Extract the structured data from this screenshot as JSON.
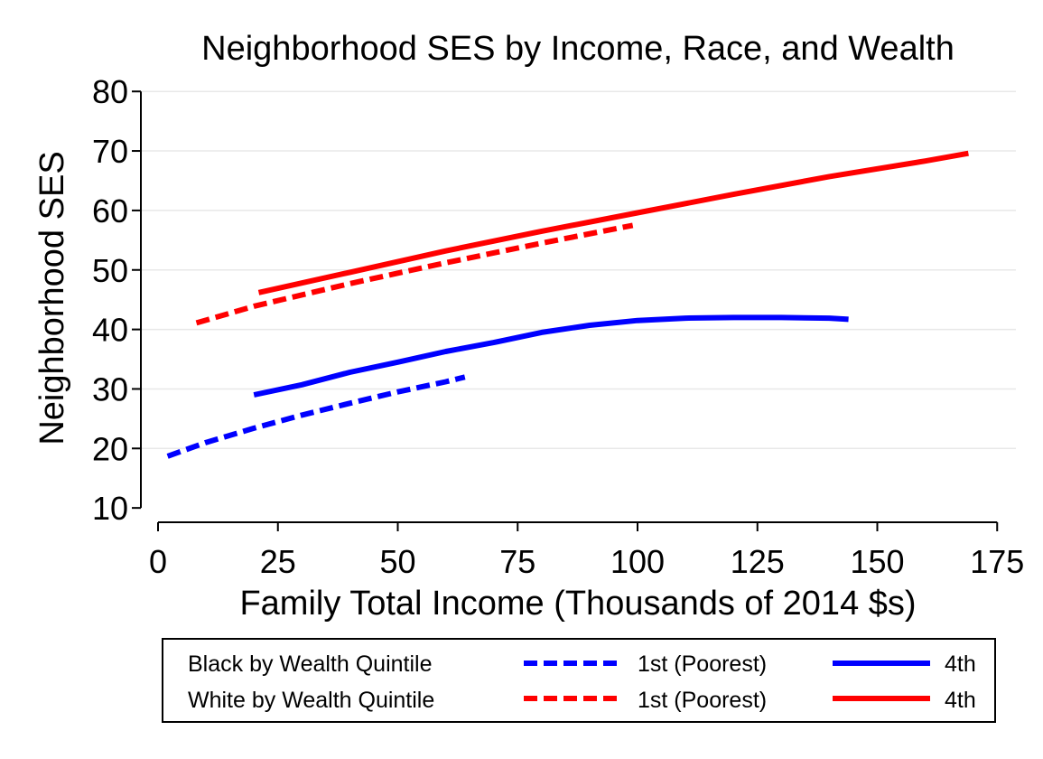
{
  "chart_data": {
    "type": "line",
    "title": "Neighborhood SES by Income, Race, and Wealth",
    "xlabel": "Family Total Income (Thousands of 2014 $s)",
    "ylabel": "Neighborhood SES",
    "xlim": [
      0,
      175
    ],
    "ylim": [
      10,
      80
    ],
    "xticks": [
      0,
      25,
      50,
      75,
      100,
      125,
      150,
      175
    ],
    "yticks": [
      10,
      20,
      30,
      40,
      50,
      60,
      70,
      80
    ],
    "grid": "horizontal",
    "legend_position": "bottom",
    "legend": {
      "row_labels": [
        "Black by Wealth Quintile",
        "White by Wealth Quintile"
      ],
      "entries": [
        "1st (Poorest)",
        "4th",
        "1st (Poorest)",
        "4th"
      ]
    },
    "colors": {
      "black": "#0000ff",
      "white": "#ff0000",
      "grid": "#e8e8e8"
    },
    "series": [
      {
        "name": "1st (Poorest)",
        "group": "Black by Wealth Quintile",
        "color": "#0000ff",
        "dash": "dashed",
        "x": [
          2,
          10,
          20,
          30,
          40,
          50,
          60,
          64
        ],
        "y": [
          18.7,
          21.0,
          23.4,
          25.6,
          27.6,
          29.5,
          31.2,
          32.0
        ]
      },
      {
        "name": "4th",
        "group": "Black by Wealth Quintile",
        "color": "#0000ff",
        "dash": "solid",
        "x": [
          20,
          30,
          40,
          50,
          60,
          70,
          80,
          90,
          100,
          110,
          120,
          130,
          140,
          144
        ],
        "y": [
          29.0,
          30.7,
          32.8,
          34.5,
          36.3,
          37.8,
          39.5,
          40.7,
          41.5,
          41.9,
          42.0,
          42.0,
          41.9,
          41.7
        ]
      },
      {
        "name": "1st (Poorest)",
        "group": "White by Wealth Quintile",
        "color": "#ff0000",
        "dash": "dashed",
        "x": [
          8,
          20,
          40,
          60,
          80,
          99
        ],
        "y": [
          41.1,
          43.9,
          47.7,
          51.2,
          54.5,
          57.5
        ]
      },
      {
        "name": "4th",
        "group": "White by Wealth Quintile",
        "color": "#ff0000",
        "dash": "solid",
        "x": [
          21,
          40,
          60,
          80,
          100,
          120,
          140,
          160,
          169
        ],
        "y": [
          46.2,
          49.6,
          53.2,
          56.5,
          59.6,
          62.7,
          65.7,
          68.3,
          69.6
        ]
      }
    ]
  }
}
